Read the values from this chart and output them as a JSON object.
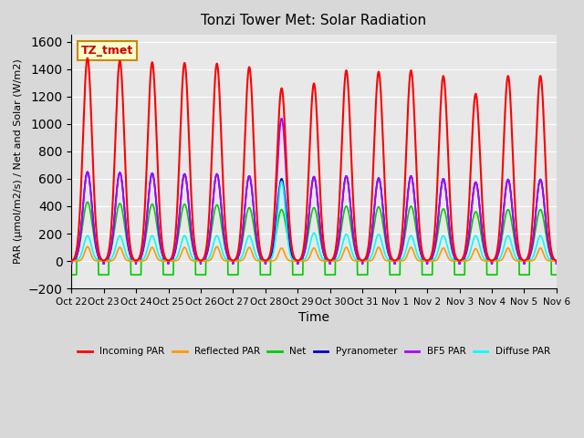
{
  "title": "Tonzi Tower Met: Solar Radiation",
  "ylabel": "PAR (μmol/m2/s) / Net and Solar (W/m2)",
  "xlabel": "Time",
  "ylim": [
    -200,
    1650
  ],
  "yticks": [
    -200,
    0,
    200,
    400,
    600,
    800,
    1000,
    1200,
    1400,
    1600
  ],
  "plot_bg_color": "#e8e8e8",
  "fig_bg_color": "#d8d8d8",
  "annotation_text": "TZ_tmet",
  "annotation_bg": "#ffffcc",
  "annotation_border": "#cc8800",
  "x_tick_labels": [
    "Oct 22",
    "Oct 23",
    "Oct 24",
    "Oct 25",
    "Oct 26",
    "Oct 27",
    "Oct 28",
    "Oct 29",
    "Oct 30",
    "Oct 31",
    "Nov 1",
    "Nov 2",
    "Nov 3",
    "Nov 4",
    "Nov 5",
    "Nov 6"
  ],
  "series": {
    "incoming_par": {
      "color": "#ff0000",
      "label": "Incoming PAR",
      "peak": [
        1480,
        1460,
        1450,
        1445,
        1440,
        1415,
        1260,
        1295,
        1390,
        1380,
        1390,
        1350,
        1220,
        1350,
        1350
      ]
    },
    "reflected_par": {
      "color": "#ff9900",
      "label": "Reflected PAR",
      "peak": [
        105,
        100,
        100,
        100,
        105,
        100,
        95,
        95,
        100,
        100,
        100,
        95,
        90,
        95,
        95
      ]
    },
    "net": {
      "color": "#00cc00",
      "label": "Net",
      "peak": [
        430,
        420,
        415,
        415,
        410,
        390,
        375,
        390,
        400,
        395,
        400,
        380,
        360,
        375,
        375
      ]
    },
    "pyranometer": {
      "color": "#0000cc",
      "label": "Pyranometer",
      "peak": [
        650,
        645,
        640,
        635,
        635,
        620,
        600,
        615,
        620,
        605,
        620,
        600,
        575,
        595,
        595
      ]
    },
    "bf5_par": {
      "color": "#aa00ff",
      "label": "BF5 PAR",
      "peak": [
        650,
        645,
        640,
        635,
        635,
        620,
        1040,
        615,
        620,
        605,
        620,
        600,
        575,
        595,
        595
      ]
    },
    "diffuse_par": {
      "color": "#00ffff",
      "label": "Diffuse PAR",
      "peak": [
        185,
        185,
        185,
        185,
        185,
        185,
        580,
        205,
        195,
        195,
        185,
        185,
        185,
        185,
        185
      ]
    }
  },
  "n_days": 15,
  "points_per_day": 144
}
